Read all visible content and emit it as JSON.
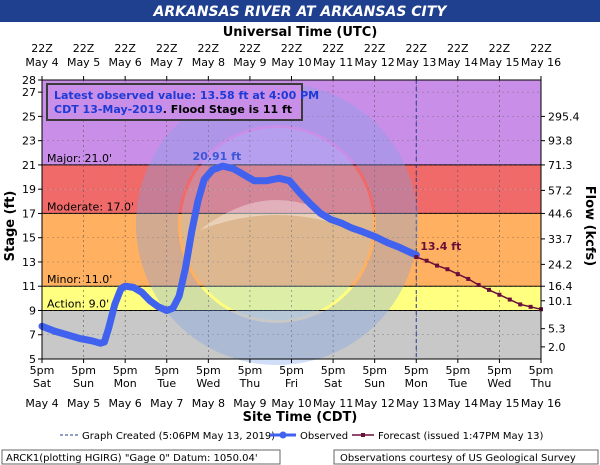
{
  "title": "ARKANSAS RIVER AT ARKANSAS CITY",
  "top_axis_title": "Universal Time (UTC)",
  "bottom_axis_title": "Site Time (CDT)",
  "left_axis_title": "Stage (ft)",
  "right_axis_title": "Flow (kcfs)",
  "info": {
    "line1": "Latest observed value: 13.58 ft at 4:00 PM",
    "line2a": "CDT 13-May-2019",
    "line2b": ". Flood Stage is 11 ft"
  },
  "peak_label": "20.91 ft",
  "forecast_label": "13.4 ft",
  "legend": {
    "created": "Graph Created (5:06PM May 13, 2019)",
    "observed": "Observed",
    "forecast": "Forecast (issued 1:47PM May 13)"
  },
  "footer": {
    "left": "ARCK1(plotting HGIRG) \"Gage 0\" Datum: 1050.04'",
    "right": "Observations courtesy of US Geological Survey"
  },
  "colors": {
    "title_bg": "#1f3f8f",
    "observed": "#4062ee",
    "forecast": "#6a0f3b",
    "major": "#c98fe8",
    "major_band": "#f06a6a",
    "moderate_band": "#ffb060",
    "minor_band": "#ffff80",
    "below_band": "#c8c8c8",
    "peak_text": "#3b56d8"
  },
  "chart_data": {
    "type": "line",
    "x_ticks_bottom_time": [
      "5pm",
      "5pm",
      "5pm",
      "5pm",
      "5pm",
      "5pm",
      "5pm",
      "5pm",
      "5pm",
      "5pm",
      "5pm",
      "5pm",
      "5pm"
    ],
    "x_ticks_bottom_day": [
      "Sat",
      "Sun",
      "Mon",
      "Tue",
      "Wed",
      "Thu",
      "Fri",
      "Sat",
      "Sun",
      "Mon",
      "Tue",
      "Wed",
      "Thu"
    ],
    "x_ticks_dates": [
      "May 4",
      "May 5",
      "May 6",
      "May 7",
      "May 8",
      "May 9",
      "May 10",
      "May 11",
      "May 12",
      "May 13",
      "May 14",
      "May 15",
      "May 16"
    ],
    "x_ticks_top_time": [
      "22Z",
      "22Z",
      "22Z",
      "22Z",
      "22Z",
      "22Z",
      "22Z",
      "22Z",
      "22Z",
      "22Z",
      "22Z",
      "22Z",
      "22Z"
    ],
    "y_left_ticks": [
      "5",
      "7",
      "9",
      "11",
      "13",
      "15",
      "17",
      "19",
      "21",
      "23",
      "25",
      "27",
      "28"
    ],
    "y_right_ticks": [
      {
        "stage": 6.0,
        "label": "2.0"
      },
      {
        "stage": 7.5,
        "label": "5.3"
      },
      {
        "stage": 9.8,
        "label": "10.1"
      },
      {
        "stage": 11.0,
        "label": "16.4"
      },
      {
        "stage": 12.8,
        "label": "24.2"
      },
      {
        "stage": 14.9,
        "label": "33.7"
      },
      {
        "stage": 17.0,
        "label": "44.6"
      },
      {
        "stage": 18.9,
        "label": "57.2"
      },
      {
        "stage": 21.0,
        "label": "71.3"
      },
      {
        "stage": 23.0,
        "label": "93.8"
      },
      {
        "stage": 25.0,
        "label": "295.4"
      }
    ],
    "ylim": [
      5,
      28
    ],
    "xlim_days": [
      0,
      12
    ],
    "now_day": 9.0,
    "bands": [
      {
        "name": "Major: 21.0'",
        "from": 21,
        "to": 28
      },
      {
        "name": "",
        "from": 19,
        "to": 21
      },
      {
        "name": "Moderate: 17.0'",
        "from": 17,
        "to": 19
      },
      {
        "name": "",
        "from": 11,
        "to": 17
      },
      {
        "name": "Minor: 11.0'",
        "from": 9,
        "to": 11
      },
      {
        "name": "Action: 9.0'",
        "from": 5,
        "to": 9
      }
    ],
    "observed": [
      [
        0.0,
        7.7
      ],
      [
        0.3,
        7.3
      ],
      [
        0.6,
        7.0
      ],
      [
        0.9,
        6.7
      ],
      [
        1.2,
        6.5
      ],
      [
        1.4,
        6.3
      ],
      [
        1.5,
        6.4
      ],
      [
        1.6,
        7.5
      ],
      [
        1.75,
        9.5
      ],
      [
        1.9,
        10.8
      ],
      [
        2.0,
        11.0
      ],
      [
        2.2,
        10.9
      ],
      [
        2.4,
        10.5
      ],
      [
        2.6,
        9.8
      ],
      [
        2.8,
        9.3
      ],
      [
        3.0,
        9.0
      ],
      [
        3.15,
        9.2
      ],
      [
        3.3,
        10.2
      ],
      [
        3.45,
        12.5
      ],
      [
        3.6,
        15.5
      ],
      [
        3.75,
        18.0
      ],
      [
        3.9,
        19.8
      ],
      [
        4.1,
        20.6
      ],
      [
        4.35,
        20.9
      ],
      [
        4.6,
        20.7
      ],
      [
        4.85,
        20.2
      ],
      [
        5.1,
        19.7
      ],
      [
        5.4,
        19.7
      ],
      [
        5.7,
        19.9
      ],
      [
        5.95,
        19.7
      ],
      [
        6.2,
        18.7
      ],
      [
        6.45,
        17.8
      ],
      [
        6.7,
        17.0
      ],
      [
        6.95,
        16.5
      ],
      [
        7.2,
        16.2
      ],
      [
        7.45,
        15.8
      ],
      [
        7.7,
        15.5
      ],
      [
        8.0,
        15.1
      ],
      [
        8.3,
        14.6
      ],
      [
        8.6,
        14.2
      ],
      [
        8.85,
        13.8
      ],
      [
        9.0,
        13.58
      ]
    ],
    "forecast": [
      [
        9.0,
        13.4
      ],
      [
        9.25,
        13.1
      ],
      [
        9.5,
        12.7
      ],
      [
        9.75,
        12.4
      ],
      [
        10.0,
        12.0
      ],
      [
        10.25,
        11.6
      ],
      [
        10.5,
        11.1
      ],
      [
        10.75,
        10.7
      ],
      [
        11.0,
        10.3
      ],
      [
        11.25,
        9.9
      ],
      [
        11.5,
        9.5
      ],
      [
        11.75,
        9.3
      ],
      [
        12.0,
        9.1
      ]
    ],
    "peak": {
      "x": 4.35,
      "y": 20.91
    },
    "latest": {
      "x": 9.0,
      "y": 13.58
    }
  }
}
